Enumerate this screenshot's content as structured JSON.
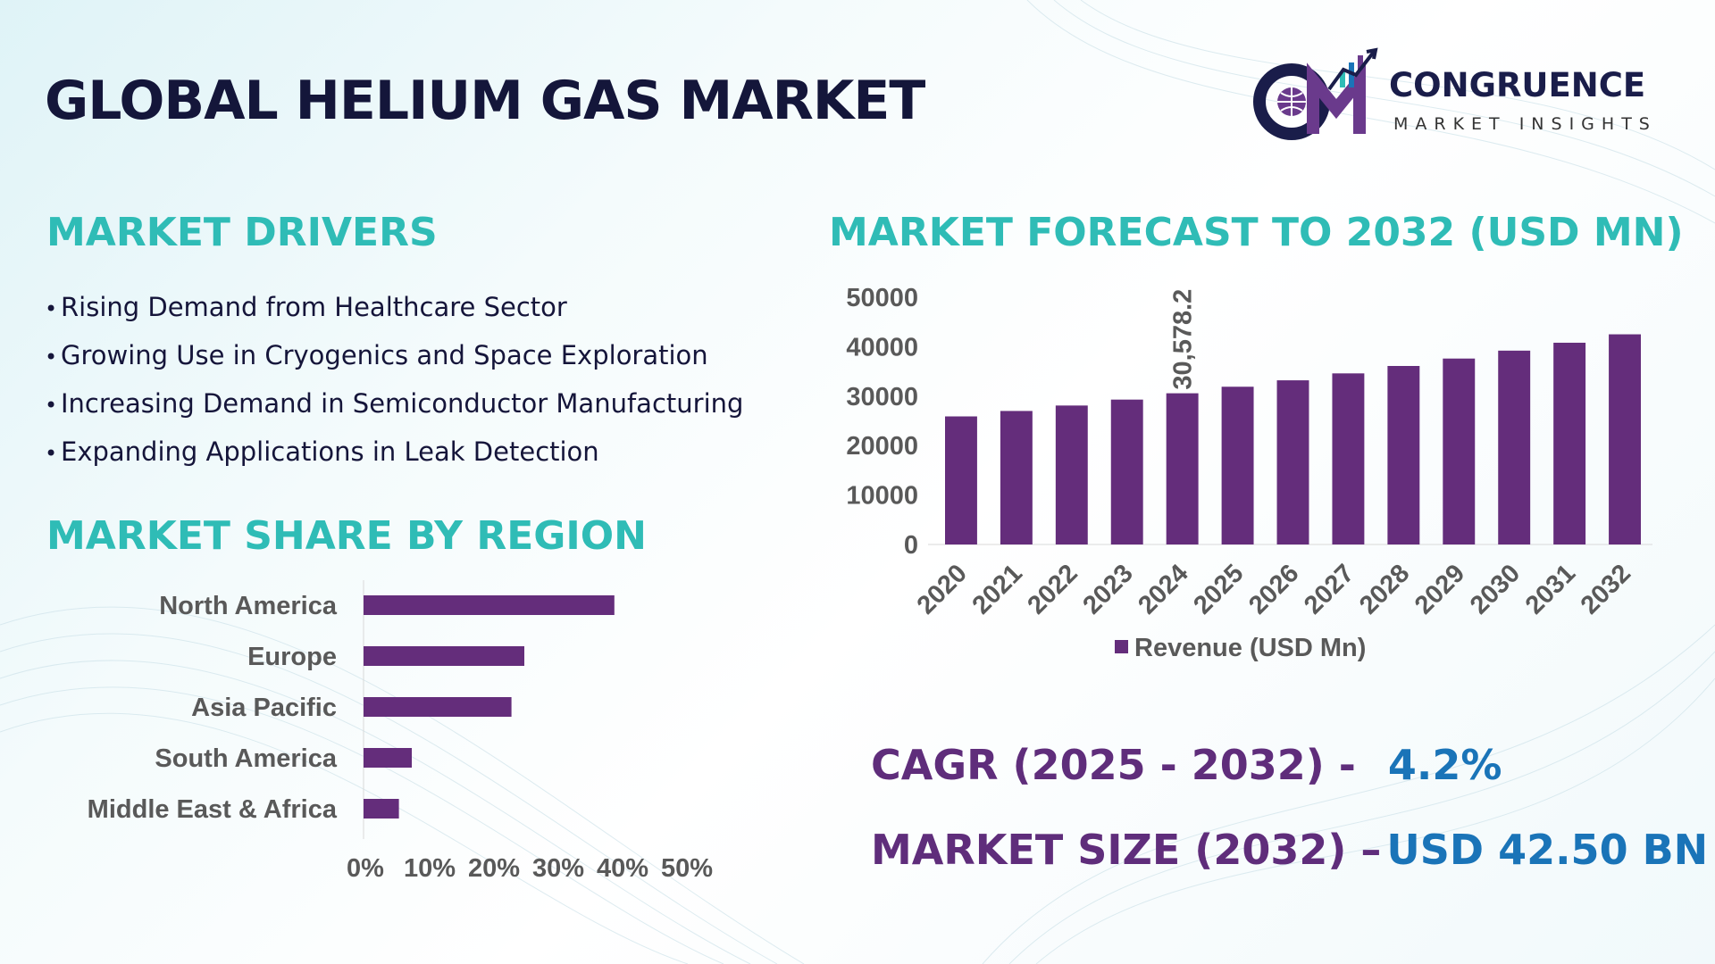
{
  "title": "GLOBAL HELIUM GAS MARKET",
  "logo": {
    "name": "CONGRUENCE",
    "tagline": "MARKET INSIGHTS"
  },
  "drivers": {
    "heading": "MARKET DRIVERS",
    "items": [
      "Rising Demand from Healthcare Sector",
      "Growing Use in Cryogenics and Space Exploration",
      "Increasing Demand in Semiconductor Manufacturing",
      "Expanding Applications in Leak Detection"
    ]
  },
  "region": {
    "heading": "MARKET SHARE BY REGION"
  },
  "forecast": {
    "heading": "MARKET FORECAST TO 2032 (USD MN)"
  },
  "kpis": {
    "cagr_label": "CAGR (2025 - 2032) -",
    "cagr_value": "4.2%",
    "size_label": "MARKET SIZE (2032) –",
    "size_value": "USD 42.50 BN"
  },
  "colors": {
    "bar": "#642d7b",
    "heading": "#2fbcb6",
    "title": "#14163a",
    "value_blue": "#1a74b8"
  },
  "chart_data": [
    {
      "type": "bar",
      "orientation": "horizontal",
      "categories": [
        "North America",
        "Europe",
        "Asia Pacific",
        "South America",
        "Middle East & Africa"
      ],
      "values": [
        39,
        25,
        23,
        7.5,
        5.5
      ],
      "value_unit": "%",
      "xticks": [
        "0%",
        "10%",
        "20%",
        "30%",
        "40%",
        "50%"
      ],
      "xlim": [
        0,
        50
      ],
      "grid": false,
      "legend": false
    },
    {
      "type": "bar",
      "categories": [
        "2020",
        "2021",
        "2022",
        "2023",
        "2024",
        "2025",
        "2026",
        "2027",
        "2028",
        "2029",
        "2030",
        "2031",
        "2032"
      ],
      "series": [
        {
          "name": "Revenue (USD Mn)",
          "values": [
            25900,
            27000,
            28100,
            29300,
            30578.2,
            31900,
            33200,
            34600,
            36100,
            37600,
            39200,
            40800,
            42500
          ]
        }
      ],
      "data_labels": [
        {
          "index": 4,
          "text": "30,578.2"
        }
      ],
      "yticks": [
        "0",
        "10000",
        "20000",
        "30000",
        "40000",
        "50000"
      ],
      "ylim": [
        0,
        50000
      ],
      "grid": false,
      "legend": "bottom"
    }
  ]
}
